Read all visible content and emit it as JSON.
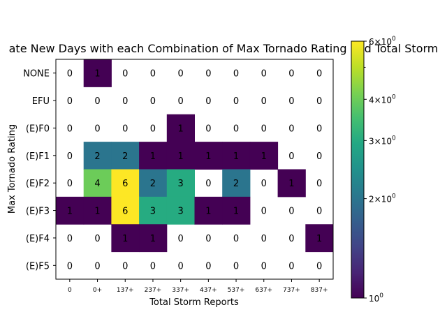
{
  "chart_data": {
    "type": "heatmap",
    "title": "ate New Days with each Combination of Max Tornado Rating and Total Storm",
    "xlabel": "Total Storm Reports",
    "ylabel": "Max Tornado Rating",
    "x_categories": [
      "0",
      "0+",
      "137+",
      "237+",
      "337+",
      "437+",
      "537+",
      "637+",
      "737+",
      "837+"
    ],
    "y_categories": [
      "NONE",
      "EFU",
      "(E)F0",
      "(E)F1",
      "(E)F2",
      "(E)F3",
      "(E)F4",
      "(E)F5"
    ],
    "values": [
      [
        0,
        1,
        0,
        0,
        0,
        0,
        0,
        0,
        0,
        0
      ],
      [
        0,
        0,
        0,
        0,
        0,
        0,
        0,
        0,
        0,
        0
      ],
      [
        0,
        0,
        0,
        0,
        1,
        0,
        0,
        0,
        0,
        0
      ],
      [
        0,
        2,
        2,
        1,
        1,
        1,
        1,
        1,
        0,
        0
      ],
      [
        0,
        4,
        6,
        2,
        3,
        0,
        2,
        0,
        1,
        0
      ],
      [
        1,
        1,
        6,
        3,
        3,
        1,
        1,
        0,
        0,
        0
      ],
      [
        0,
        0,
        1,
        1,
        0,
        0,
        0,
        0,
        0,
        1
      ],
      [
        0,
        0,
        0,
        0,
        0,
        0,
        0,
        0,
        0,
        0
      ]
    ],
    "colorbar": {
      "scale": "log",
      "colormap": "viridis",
      "range": [
        1,
        6
      ],
      "major_ticks": [
        {
          "value": 1,
          "label": "10^0"
        },
        {
          "value": 2,
          "label": "2×10^0"
        },
        {
          "value": 3,
          "label": "3×10^0"
        },
        {
          "value": 4,
          "label": "4×10^0"
        },
        {
          "value": 6,
          "label": "6×10^0"
        }
      ]
    },
    "zero_cells": "masked (white)",
    "grid": false
  }
}
